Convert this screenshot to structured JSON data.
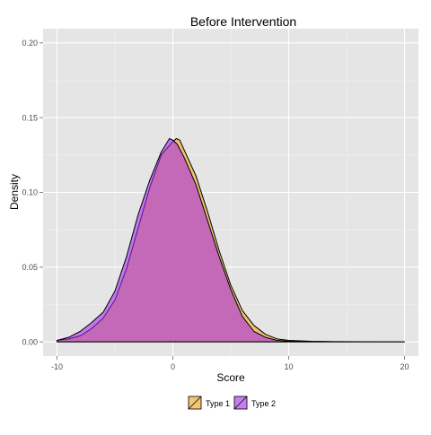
{
  "chart_data": {
    "type": "area",
    "title": "Before Intervention",
    "xlabel": "Score",
    "ylabel": "Density",
    "xlim": [
      -11.2,
      21.2
    ],
    "ylim": [
      -0.0095,
      0.2095
    ],
    "x_ticks": [
      -10,
      0,
      10,
      20
    ],
    "x_tick_labels": [
      "-10",
      "0",
      "10",
      "20"
    ],
    "y_ticks": [
      0.0,
      0.05,
      0.1,
      0.15,
      0.2
    ],
    "y_tick_labels": [
      "0.00",
      "0.05",
      "0.10",
      "0.15",
      "0.20"
    ],
    "grid": true,
    "legend_position": "bottom",
    "series": [
      {
        "name": "Type 1",
        "fill": "#f5a623",
        "fill_opacity": 0.6,
        "x": [
          -10,
          -9,
          -8,
          -7,
          -6,
          -5,
          -4,
          -3,
          -2,
          -1,
          0,
          0.3,
          0.6,
          1,
          2,
          3,
          4,
          5,
          6,
          7,
          8,
          9,
          10,
          12,
          14,
          16,
          18,
          20
        ],
        "y": [
          0.001,
          0.002,
          0.004,
          0.009,
          0.016,
          0.028,
          0.049,
          0.076,
          0.103,
          0.125,
          0.134,
          0.136,
          0.135,
          0.128,
          0.111,
          0.087,
          0.061,
          0.038,
          0.021,
          0.011,
          0.005,
          0.002,
          0.001,
          0.0004,
          0.0002,
          0.0001,
          0.0,
          0.0
        ]
      },
      {
        "name": "Type 2",
        "fill": "#a020f0",
        "fill_opacity": 0.55,
        "x": [
          -10,
          -9,
          -8,
          -7,
          -6,
          -5,
          -4,
          -3,
          -2,
          -1,
          -0.3,
          0,
          0.4,
          1,
          2,
          3,
          4,
          5,
          6,
          7,
          8,
          9,
          10,
          12,
          14,
          16,
          18,
          20
        ],
        "y": [
          0.001,
          0.003,
          0.007,
          0.013,
          0.02,
          0.034,
          0.057,
          0.085,
          0.108,
          0.127,
          0.136,
          0.135,
          0.132,
          0.123,
          0.105,
          0.081,
          0.057,
          0.035,
          0.017,
          0.007,
          0.003,
          0.001,
          0.0005,
          0.0002,
          0.0001,
          0.0,
          0.0,
          0.0
        ]
      }
    ]
  }
}
